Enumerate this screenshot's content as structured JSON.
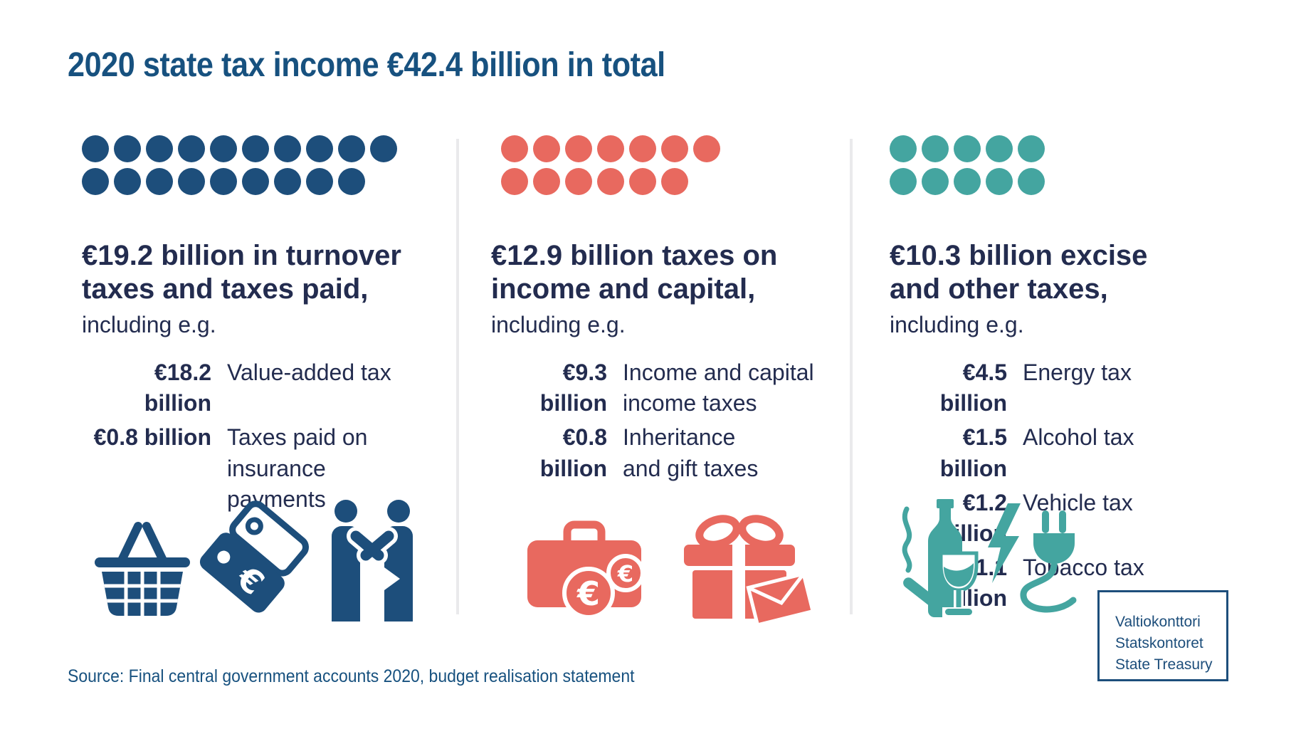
{
  "page": {
    "title": "2020 state tax income €42.4 billion in total",
    "source": "Source: Final central government accounts 2020, budget realisation statement"
  },
  "logo": {
    "line1": "Valtiokonttori",
    "line2": "Statskontoret",
    "line3": "State Treasury"
  },
  "colors": {
    "navy_blue": "#1d4e7b",
    "title_blue": "#17517f",
    "dark_text": "#232c4f",
    "salmon_red": "#e8695f",
    "teal_green": "#44a5a0",
    "divider_gray": "#eaeaec"
  },
  "columns": [
    {
      "id": "turnover-taxes",
      "accent_color": "#1d4e7b",
      "dot_rows": [
        10,
        9
      ],
      "heading": "€19.2 billion in turnover\ntaxes and taxes paid,",
      "subheading": "including e.g.",
      "items": [
        {
          "amount": "€18.2 billion",
          "label": "Value-added tax"
        },
        {
          "amount": "€0.8 billion",
          "label": "Taxes paid on\ninsurance\npayments"
        }
      ],
      "icons": [
        "shopping-basket",
        "price-tags",
        "handshake"
      ]
    },
    {
      "id": "income-capital-taxes",
      "accent_color": "#e8695f",
      "dot_rows": [
        7,
        6
      ],
      "heading": "€12.9 billion taxes on\nincome and capital,",
      "subheading": "including e.g.",
      "items": [
        {
          "amount": "€9.3 billion",
          "label": "Income and capital\nincome taxes"
        },
        {
          "amount": "€0.8 billion",
          "label": "Inheritance\nand gift taxes"
        }
      ],
      "icons": [
        "briefcase-euro",
        "gift-envelope"
      ]
    },
    {
      "id": "excise-other-taxes",
      "accent_color": "#44a5a0",
      "dot_rows": [
        5,
        5
      ],
      "heading": "€10.3 billion excise\nand other taxes,",
      "subheading": "including e.g.",
      "items": [
        {
          "amount": "€4.5 billion",
          "label": "Energy tax"
        },
        {
          "amount": "€1.5 billion",
          "label": "Alcohol tax"
        },
        {
          "amount": "€1.2 billion",
          "label": "Vehicle tax"
        },
        {
          "amount": "€1.1 billion",
          "label": "Tobacco tax"
        }
      ],
      "icons": [
        "alcohol-tobacco",
        "energy-plug"
      ]
    }
  ],
  "chart_data": {
    "type": "bar",
    "variant": "unit-pictogram",
    "title": "2020 state tax income €42.4 billion in total",
    "total": 42.4,
    "unit": "€ billion",
    "unit_per_dot": 1,
    "categories": [
      "Turnover taxes and taxes paid",
      "Taxes on income and capital",
      "Excise and other taxes"
    ],
    "values": [
      19.2,
      12.9,
      10.3
    ],
    "dot_counts": [
      19,
      13,
      10
    ],
    "series": [
      {
        "name": "Turnover taxes and taxes paid",
        "value": 19.2,
        "color": "#1d4e7b",
        "breakdown": [
          {
            "label": "Value-added tax",
            "value": 18.2
          },
          {
            "label": "Taxes paid on insurance payments",
            "value": 0.8
          }
        ]
      },
      {
        "name": "Taxes on income and capital",
        "value": 12.9,
        "color": "#e8695f",
        "breakdown": [
          {
            "label": "Income and capital income taxes",
            "value": 9.3
          },
          {
            "label": "Inheritance and gift taxes",
            "value": 0.8
          }
        ]
      },
      {
        "name": "Excise and other taxes",
        "value": 10.3,
        "color": "#44a5a0",
        "breakdown": [
          {
            "label": "Energy tax",
            "value": 4.5
          },
          {
            "label": "Alcohol tax",
            "value": 1.5
          },
          {
            "label": "Vehicle tax",
            "value": 1.2
          },
          {
            "label": "Tobacco tax",
            "value": 1.1
          }
        ]
      }
    ],
    "legend_position": "none",
    "grid": false,
    "source": "Final central government accounts 2020, budget realisation statement"
  }
}
